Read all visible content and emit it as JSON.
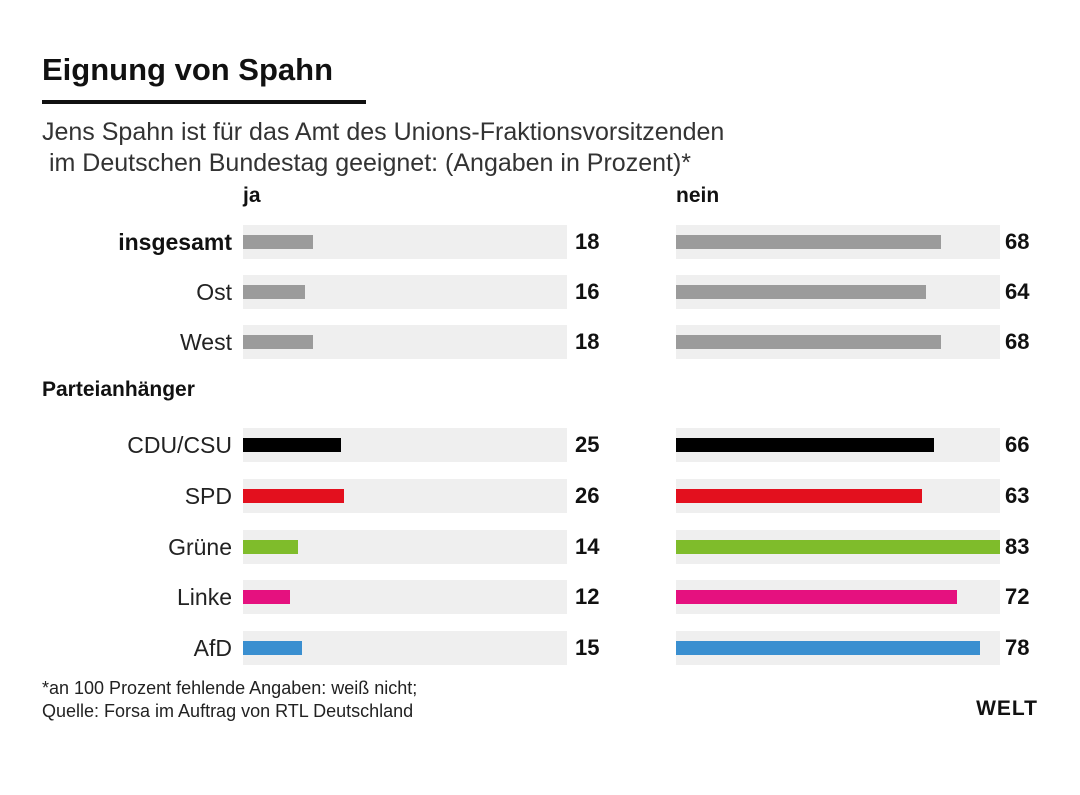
{
  "title": "Eignung von Spahn",
  "subtitle_lines": [
    "Jens Spahn ist für das Amt des Unions-Fraktionsvorsitzenden",
    " im Deutschen Bundestag geeignet: (Angaben in Prozent)*"
  ],
  "footnote_lines": [
    "*an 100 Prozent fehlende Angaben: weiß nicht;",
    "Quelle: Forsa im Auftrag von RTL Deutschland"
  ],
  "logo": "WELT",
  "section_label": "Parteianhänger",
  "colors": {
    "gray": "#9b9b9b",
    "CDU/CSU": "#000000",
    "SPD": "#e3101e",
    "Grüne": "#7fbc2b",
    "Linke": "#e5117f",
    "AfD": "#3a8fd0",
    "track": "#efefef"
  },
  "chart_data": {
    "type": "bar",
    "orientation": "horizontal",
    "title": "Eignung von Spahn",
    "unit": "Prozent",
    "categories": [
      "insgesamt",
      "Ost",
      "West",
      "CDU/CSU",
      "SPD",
      "Grüne",
      "Linke",
      "AfD"
    ],
    "category_colors": [
      "gray",
      "gray",
      "gray",
      "CDU/CSU",
      "SPD",
      "Grüne",
      "Linke",
      "AfD"
    ],
    "groups": [
      {
        "label": "",
        "categories": [
          "insgesamt",
          "Ost",
          "West"
        ]
      },
      {
        "label": "Parteianhänger",
        "categories": [
          "CDU/CSU",
          "SPD",
          "Grüne",
          "Linke",
          "AfD"
        ]
      }
    ],
    "series": [
      {
        "name": "ja",
        "values": [
          18,
          16,
          18,
          25,
          26,
          14,
          12,
          15
        ],
        "xlim": [
          0,
          83
        ]
      },
      {
        "name": "nein",
        "values": [
          68,
          64,
          68,
          66,
          63,
          83,
          72,
          78
        ],
        "xlim": [
          0,
          83
        ]
      }
    ]
  }
}
